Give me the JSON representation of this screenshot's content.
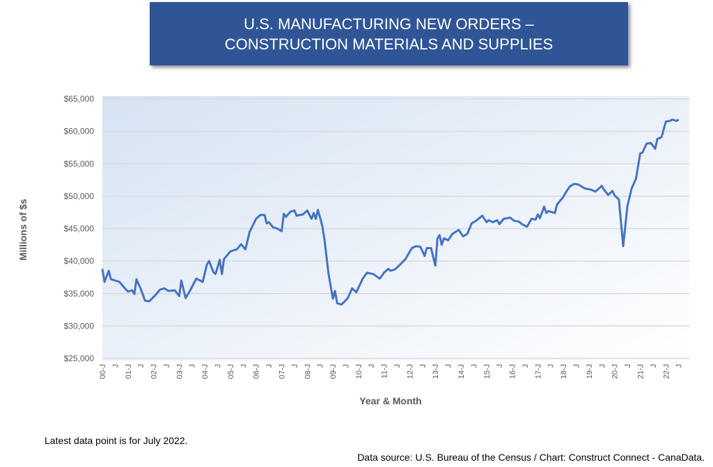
{
  "title_lines": [
    "U.S. MANUFACTURING NEW ORDERS –",
    "CONSTRUCTION MATERIALS AND SUPPLIES"
  ],
  "notes": {
    "latest": "Latest data point is for July 2022.",
    "source": "Data source: U.S. Bureau of the Census / Chart: Construct Connect - CanaData."
  },
  "chart_data": {
    "type": "line",
    "title": "U.S. MANUFACTURING NEW ORDERS – CONSTRUCTION MATERIALS AND SUPPLIES",
    "xlabel": "Year & Month",
    "ylabel": "Millions of $s",
    "ylim": [
      25000,
      65000
    ],
    "xlim": [
      "2000-01",
      "2022-11"
    ],
    "grid": true,
    "legend": "none",
    "line_color": "#4472c4",
    "yticks": [
      25000,
      30000,
      35000,
      40000,
      45000,
      50000,
      55000,
      60000,
      65000
    ],
    "ytick_labels": [
      "$25,000",
      "$30,000",
      "$35,000",
      "$40,000",
      "$45,000",
      "$50,000",
      "$55,000",
      "$60,000",
      "$65,000"
    ],
    "xtick_labels": [
      "00-J",
      "J",
      "01-J",
      "J",
      "02-J",
      "J",
      "03-J",
      "J",
      "04-J",
      "J",
      "05-J",
      "J",
      "06-J",
      "J",
      "07-J",
      "J",
      "08-J",
      "J",
      "09-J",
      "J",
      "10-J",
      "J",
      "11-J",
      "J",
      "12-J",
      "J",
      "13-J",
      "J",
      "14-J",
      "J",
      "15-J",
      "J",
      "16-J",
      "J",
      "17-J",
      "J",
      "18-J",
      "J",
      "19-J",
      "J",
      "20-J",
      "J",
      "21-J",
      "J",
      "22-J",
      "J"
    ],
    "points": [
      [
        "2000-01",
        38800
      ],
      [
        "2000-02",
        36800
      ],
      [
        "2000-04",
        38500
      ],
      [
        "2000-05",
        37200
      ],
      [
        "2000-09",
        36800
      ],
      [
        "2000-11",
        36000
      ],
      [
        "2001-01",
        35300
      ],
      [
        "2001-03",
        35500
      ],
      [
        "2001-04",
        34900
      ],
      [
        "2001-05",
        37200
      ],
      [
        "2001-07",
        35700
      ],
      [
        "2001-09",
        33900
      ],
      [
        "2001-11",
        33800
      ],
      [
        "2002-02",
        34800
      ],
      [
        "2002-04",
        35600
      ],
      [
        "2002-06",
        35800
      ],
      [
        "2002-08",
        35400
      ],
      [
        "2002-11",
        35500
      ],
      [
        "2003-01",
        34600
      ],
      [
        "2003-02",
        37000
      ],
      [
        "2003-04",
        34300
      ],
      [
        "2003-06",
        35400
      ],
      [
        "2003-09",
        37300
      ],
      [
        "2003-12",
        36800
      ],
      [
        "2004-02",
        39500
      ],
      [
        "2004-03",
        40000
      ],
      [
        "2004-05",
        38300
      ],
      [
        "2004-06",
        38000
      ],
      [
        "2004-08",
        40200
      ],
      [
        "2004-09",
        38000
      ],
      [
        "2004-10",
        40300
      ],
      [
        "2005-01",
        41500
      ],
      [
        "2005-04",
        41800
      ],
      [
        "2005-06",
        42600
      ],
      [
        "2005-08",
        41800
      ],
      [
        "2005-10",
        44500
      ],
      [
        "2006-01",
        46500
      ],
      [
        "2006-03",
        47100
      ],
      [
        "2006-05",
        47100
      ],
      [
        "2006-06",
        45800
      ],
      [
        "2006-07",
        46000
      ],
      [
        "2006-09",
        45200
      ],
      [
        "2006-11",
        45000
      ],
      [
        "2007-01",
        44600
      ],
      [
        "2007-02",
        47300
      ],
      [
        "2007-03",
        46800
      ],
      [
        "2007-05",
        47600
      ],
      [
        "2007-07",
        47800
      ],
      [
        "2007-08",
        47000
      ],
      [
        "2007-11",
        47200
      ],
      [
        "2008-01",
        47800
      ],
      [
        "2008-03",
        46500
      ],
      [
        "2008-04",
        47400
      ],
      [
        "2008-05",
        46500
      ],
      [
        "2008-06",
        47900
      ],
      [
        "2008-08",
        45500
      ],
      [
        "2008-09",
        43500
      ],
      [
        "2008-11",
        38000
      ],
      [
        "2009-01",
        34200
      ],
      [
        "2009-02",
        35400
      ],
      [
        "2009-03",
        33500
      ],
      [
        "2009-05",
        33300
      ],
      [
        "2009-06",
        33600
      ],
      [
        "2009-08",
        34300
      ],
      [
        "2009-10",
        35800
      ],
      [
        "2009-12",
        35200
      ],
      [
        "2010-03",
        37300
      ],
      [
        "2010-05",
        38200
      ],
      [
        "2010-08",
        38000
      ],
      [
        "2010-11",
        37300
      ],
      [
        "2011-01",
        38200
      ],
      [
        "2011-03",
        38800
      ],
      [
        "2011-04",
        38500
      ],
      [
        "2011-06",
        38700
      ],
      [
        "2011-08",
        39300
      ],
      [
        "2011-11",
        40300
      ],
      [
        "2012-02",
        42000
      ],
      [
        "2012-04",
        42300
      ],
      [
        "2012-06",
        42200
      ],
      [
        "2012-08",
        40800
      ],
      [
        "2012-09",
        42000
      ],
      [
        "2012-11",
        42000
      ],
      [
        "2013-01",
        39300
      ],
      [
        "2013-02",
        43500
      ],
      [
        "2013-03",
        44000
      ],
      [
        "2013-04",
        42500
      ],
      [
        "2013-05",
        43500
      ],
      [
        "2013-07",
        43200
      ],
      [
        "2013-09",
        44200
      ],
      [
        "2013-12",
        44800
      ],
      [
        "2014-02",
        43800
      ],
      [
        "2014-04",
        44200
      ],
      [
        "2014-06",
        45800
      ],
      [
        "2014-08",
        46200
      ],
      [
        "2014-11",
        47000
      ],
      [
        "2015-01",
        46000
      ],
      [
        "2015-02",
        46300
      ],
      [
        "2015-04",
        46000
      ],
      [
        "2015-06",
        46300
      ],
      [
        "2015-07",
        45700
      ],
      [
        "2015-09",
        46500
      ],
      [
        "2015-12",
        46700
      ],
      [
        "2016-02",
        46200
      ],
      [
        "2016-04",
        46100
      ],
      [
        "2016-06",
        45600
      ],
      [
        "2016-08",
        45300
      ],
      [
        "2016-10",
        46500
      ],
      [
        "2016-12",
        46400
      ],
      [
        "2017-01",
        47200
      ],
      [
        "2017-02",
        46600
      ],
      [
        "2017-04",
        48400
      ],
      [
        "2017-05",
        47400
      ],
      [
        "2017-06",
        47700
      ],
      [
        "2017-09",
        47400
      ],
      [
        "2017-10",
        48700
      ],
      [
        "2018-01",
        49900
      ],
      [
        "2018-02",
        50500
      ],
      [
        "2018-04",
        51500
      ],
      [
        "2018-06",
        51900
      ],
      [
        "2018-08",
        51800
      ],
      [
        "2018-11",
        51200
      ],
      [
        "2019-02",
        51000
      ],
      [
        "2019-04",
        50700
      ],
      [
        "2019-06",
        51300
      ],
      [
        "2019-07",
        51600
      ],
      [
        "2019-08",
        51000
      ],
      [
        "2019-10",
        50200
      ],
      [
        "2019-12",
        50800
      ],
      [
        "2020-01",
        50100
      ],
      [
        "2020-03",
        49500
      ],
      [
        "2020-04",
        46000
      ],
      [
        "2020-05",
        42300
      ],
      [
        "2020-07",
        48500
      ],
      [
        "2020-09",
        51200
      ],
      [
        "2020-11",
        52700
      ],
      [
        "2021-01",
        56600
      ],
      [
        "2021-02",
        56700
      ],
      [
        "2021-04",
        58100
      ],
      [
        "2021-06",
        58200
      ],
      [
        "2021-08",
        57300
      ],
      [
        "2021-09",
        58800
      ],
      [
        "2021-11",
        59100
      ],
      [
        "2022-01",
        61500
      ],
      [
        "2022-03",
        61600
      ],
      [
        "2022-04",
        61800
      ],
      [
        "2022-06",
        61600
      ],
      [
        "2022-07",
        61800
      ]
    ]
  }
}
